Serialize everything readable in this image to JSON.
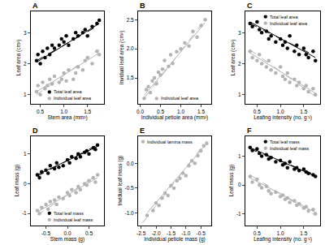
{
  "chart_data": [
    {
      "type": "scatter",
      "title": "A",
      "x_label": "Stem area (mm²)",
      "y_label": "Leaf area (cm²)",
      "xlim": [
        0.3,
        1.85
      ],
      "ylim": [
        0.7,
        3.7
      ],
      "xticks": [
        0.5,
        {
          "value": 1,
          "label": "1.0"
        },
        1.5
      ],
      "yticks": [
        1,
        2,
        3
      ],
      "grid": false,
      "legend": "bottom right",
      "series": [
        {
          "name": "Total leaf area",
          "color": "#000000",
          "marker": "circle",
          "x": [
            0.42,
            0.45,
            0.5,
            0.55,
            0.6,
            0.65,
            0.7,
            0.75,
            0.8,
            0.9,
            0.95,
            1.0,
            1.05,
            1.1,
            1.2,
            1.25,
            1.3,
            1.4,
            1.45,
            1.5,
            1.6,
            1.7,
            1.75
          ],
          "values": [
            2.1,
            2.3,
            2.0,
            2.4,
            2.2,
            2.5,
            2.3,
            2.6,
            2.5,
            2.6,
            2.8,
            2.7,
            2.9,
            2.6,
            2.8,
            3.0,
            2.9,
            3.0,
            3.1,
            2.9,
            3.2,
            3.3,
            3.4
          ]
        },
        {
          "name": "Individual leaf area",
          "color": "#b3b3b3",
          "marker": "circle",
          "x": [
            0.42,
            0.45,
            0.5,
            0.55,
            0.6,
            0.65,
            0.7,
            0.75,
            0.8,
            0.9,
            0.95,
            1.0,
            1.05,
            1.1,
            1.2,
            1.25,
            1.3,
            1.4,
            1.45,
            1.5,
            1.6,
            1.7,
            1.75
          ],
          "values": [
            1.1,
            1.3,
            1.0,
            1.4,
            1.2,
            1.3,
            1.5,
            1.35,
            1.6,
            1.4,
            1.5,
            1.7,
            1.45,
            1.8,
            1.5,
            1.7,
            1.9,
            1.8,
            2.1,
            2.2,
            2.0,
            2.4,
            2.3
          ]
        },
        {
          "type": "line",
          "color": "#000000",
          "line_style": "solid",
          "x": [
            0.42,
            1.75
          ],
          "values": [
            2.05,
            3.3
          ]
        },
        {
          "type": "line",
          "color": "#000000",
          "line_style": "dashed",
          "x": [
            0.42,
            1.75
          ],
          "values": [
            2.1,
            3.25
          ]
        },
        {
          "type": "line",
          "color": "#b3b3b3",
          "line_style": "solid",
          "x": [
            0.42,
            1.75
          ],
          "values": [
            1.1,
            2.35
          ]
        },
        {
          "type": "line",
          "color": "#b3b3b3",
          "line_style": "dashed",
          "x": [
            0.42,
            1.75
          ],
          "values": [
            1.0,
            2.45
          ]
        }
      ]
    },
    {
      "type": "scatter",
      "title": "B",
      "x_label": "Individual petiole area (mm²)",
      "y_label": "Invidual leaf area (cm²)",
      "xlim": [
        -0.05,
        1.75
      ],
      "ylim": [
        1.05,
        2.65
      ],
      "xticks": [
        {
          "value": 0,
          "label": "0.0"
        },
        0.5,
        {
          "value": 1,
          "label": "1.0"
        },
        1.5
      ],
      "yticks": [
        1.5,
        {
          "value": 2,
          "label": "2.0"
        },
        2.5
      ],
      "grid": false,
      "legend": "bottom right",
      "series": [
        {
          "name": "Individual leaf area",
          "color": "#b3b3b3",
          "marker": "circle",
          "x": [
            0.1,
            0.15,
            0.2,
            0.25,
            0.3,
            0.35,
            0.4,
            0.45,
            0.5,
            0.55,
            0.6,
            0.7,
            0.75,
            0.8,
            0.9,
            1.0,
            1.1,
            1.2,
            1.3,
            1.4,
            1.5,
            1.6
          ],
          "values": [
            1.15,
            1.3,
            1.35,
            1.25,
            1.45,
            1.5,
            1.4,
            1.6,
            1.55,
            1.65,
            1.8,
            1.7,
            1.9,
            1.75,
            1.95,
            2.0,
            2.1,
            2.05,
            2.3,
            2.2,
            2.4,
            2.5
          ]
        },
        {
          "type": "line",
          "color": "#b3b3b3",
          "line_style": "solid",
          "x": [
            0.1,
            1.6
          ],
          "values": [
            1.2,
            2.45
          ]
        },
        {
          "type": "line",
          "color": "#b3b3b3",
          "line_style": "dashed",
          "x": [
            0.1,
            1.6
          ],
          "values": [
            1.15,
            2.5
          ]
        }
      ]
    },
    {
      "type": "scatter",
      "title": "C",
      "x_label": "Leafing intensity (no. g⁻¹)",
      "y_label": "Leaf area (cm²)",
      "xlim": [
        0.25,
        1.85
      ],
      "ylim": [
        0.7,
        3.7
      ],
      "xticks": [
        0.5,
        {
          "value": 1,
          "label": "1.0"
        },
        1.5
      ],
      "yticks": [
        1,
        2,
        3
      ],
      "grid": false,
      "legend": "top right",
      "series": [
        {
          "name": "Total leaf area",
          "color": "#000000",
          "marker": "circle",
          "x": [
            0.35,
            0.4,
            0.5,
            0.55,
            0.6,
            0.7,
            0.75,
            0.8,
            0.9,
            1.0,
            1.05,
            1.1,
            1.15,
            1.2,
            1.3,
            1.35,
            1.4,
            1.5,
            1.55,
            1.6,
            1.7,
            1.75
          ],
          "values": [
            3.3,
            3.2,
            3.35,
            3.1,
            3.0,
            3.05,
            2.8,
            2.9,
            2.7,
            2.8,
            2.6,
            2.7,
            2.5,
            2.9,
            2.4,
            2.6,
            2.3,
            2.5,
            2.3,
            2.2,
            2.4,
            2.1
          ]
        },
        {
          "name": "Individual leaf area",
          "color": "#b3b3b3",
          "marker": "circle",
          "x": [
            0.35,
            0.4,
            0.5,
            0.55,
            0.6,
            0.7,
            0.75,
            0.8,
            0.9,
            1.0,
            1.05,
            1.1,
            1.15,
            1.2,
            1.3,
            1.35,
            1.4,
            1.5,
            1.55,
            1.6,
            1.7,
            1.75
          ],
          "values": [
            2.4,
            2.2,
            2.1,
            2.3,
            2.0,
            1.9,
            2.1,
            1.8,
            1.7,
            1.9,
            1.6,
            1.5,
            1.7,
            1.4,
            1.5,
            1.3,
            1.4,
            1.2,
            1.3,
            1.1,
            1.2,
            1.0
          ]
        },
        {
          "type": "line",
          "color": "#000000",
          "line_style": "solid",
          "x": [
            0.35,
            1.75
          ],
          "values": [
            3.35,
            2.2
          ]
        },
        {
          "type": "line",
          "color": "#000000",
          "line_style": "dashed",
          "x": [
            0.35,
            1.75
          ],
          "values": [
            3.3,
            2.25
          ]
        },
        {
          "type": "line",
          "color": "#b3b3b3",
          "line_style": "solid",
          "x": [
            0.35,
            1.75
          ],
          "values": [
            2.35,
            1.05
          ]
        },
        {
          "type": "line",
          "color": "#b3b3b3",
          "line_style": "dashed",
          "x": [
            0.35,
            1.75
          ],
          "values": [
            2.45,
            0.95
          ]
        }
      ]
    },
    {
      "type": "scatter",
      "title": "D",
      "x_label": "Stem mass (g)",
      "y_label": "Leaf mass (g)",
      "xlim": [
        -0.85,
        0.85
      ],
      "ylim": [
        -1.4,
        1.6
      ],
      "xticks": [
        -0.5,
        {
          "value": 0,
          "label": "0.0"
        },
        0.5
      ],
      "yticks": [
        -1,
        0,
        1
      ],
      "grid": false,
      "legend": "bottom right",
      "series": [
        {
          "name": "Total leaf mass",
          "color": "#000000",
          "marker": "circle",
          "x": [
            -0.7,
            -0.65,
            -0.6,
            -0.5,
            -0.45,
            -0.4,
            -0.3,
            -0.25,
            -0.2,
            -0.1,
            0.0,
            0.05,
            0.1,
            0.2,
            0.25,
            0.3,
            0.4,
            0.45,
            0.5,
            0.6,
            0.65,
            0.7
          ],
          "values": [
            0.3,
            0.2,
            0.4,
            0.45,
            0.35,
            0.6,
            0.5,
            0.7,
            0.55,
            0.6,
            0.8,
            0.7,
            0.9,
            0.85,
            1.0,
            0.9,
            1.05,
            1.1,
            1.0,
            1.2,
            1.15,
            1.3
          ]
        },
        {
          "name": "Individual leaf mass",
          "color": "#b3b3b3",
          "marker": "circle",
          "x": [
            -0.7,
            -0.65,
            -0.6,
            -0.5,
            -0.45,
            -0.4,
            -0.3,
            -0.25,
            -0.2,
            -0.1,
            0.0,
            0.05,
            0.1,
            0.2,
            0.25,
            0.3,
            0.4,
            0.45,
            0.5,
            0.6,
            0.65,
            0.7
          ],
          "values": [
            -0.9,
            -1.0,
            -0.8,
            -0.7,
            -0.85,
            -0.6,
            -0.55,
            -0.7,
            -0.45,
            -0.5,
            -0.3,
            -0.4,
            -0.2,
            -0.3,
            -0.1,
            -0.2,
            0.0,
            -0.05,
            0.1,
            0.2,
            0.05,
            0.3
          ]
        },
        {
          "type": "line",
          "color": "#000000",
          "line_style": "solid",
          "x": [
            -0.7,
            0.7
          ],
          "values": [
            0.3,
            1.25
          ]
        },
        {
          "type": "line",
          "color": "#000000",
          "line_style": "dashed",
          "x": [
            -0.7,
            0.7
          ],
          "values": [
            0.25,
            1.3
          ]
        },
        {
          "type": "line",
          "color": "#b3b3b3",
          "line_style": "solid",
          "x": [
            -0.7,
            0.7
          ],
          "values": [
            -0.95,
            0.2
          ]
        },
        {
          "type": "line",
          "color": "#b3b3b3",
          "line_style": "dashed",
          "x": [
            -0.7,
            0.7
          ],
          "values": [
            -1.05,
            0.3
          ]
        }
      ]
    },
    {
      "type": "scatter",
      "title": "E",
      "x_label": "Individual petiole mass (g)",
      "y_label": "Invidual leaf mass (g)",
      "xlim": [
        -2.6,
        -0.15
      ],
      "ylim": [
        -1.25,
        0.55
      ],
      "xticks": [
        -2.5,
        {
          "value": -2,
          "label": "-2.0"
        },
        -1.5,
        {
          "value": -1,
          "label": "-1.0"
        },
        -0.5
      ],
      "yticks": [
        {
          "value": -1,
          "label": "-1.0"
        },
        -0.5,
        {
          "value": 0,
          "label": "0.0"
        }
      ],
      "grid": false,
      "legend": "top left",
      "series": [
        {
          "name": "Individual lamina mass",
          "color": "#b3b3b3",
          "marker": "circle",
          "x": [
            -2.3,
            -2.1,
            -2.0,
            -1.9,
            -1.8,
            -1.7,
            -1.6,
            -1.5,
            -1.4,
            -1.3,
            -1.2,
            -1.1,
            -1.0,
            -0.9,
            -0.8,
            -0.7,
            -0.6,
            -0.5,
            -0.4,
            -0.3
          ],
          "values": [
            -1.05,
            -0.95,
            -0.8,
            -0.85,
            -0.7,
            -0.6,
            -0.65,
            -0.45,
            -0.5,
            -0.35,
            -0.3,
            -0.2,
            -0.25,
            -0.05,
            0.05,
            0.0,
            0.15,
            0.25,
            0.35,
            0.4
          ]
        },
        {
          "type": "line",
          "color": "#b3b3b3",
          "line_style": "solid",
          "x": [
            -2.3,
            -0.3
          ],
          "values": [
            -1.0,
            0.4
          ]
        },
        {
          "type": "line",
          "color": "#b3b3b3",
          "line_style": "dashed",
          "x": [
            -2.45,
            -0.3
          ],
          "values": [
            -1.2,
            0.45
          ]
        }
      ]
    },
    {
      "type": "scatter",
      "title": "F",
      "x_label": "Leafing intensity (no. g⁻¹)",
      "y_label": "Leaf mass (g)",
      "xlim": [
        0.25,
        1.85
      ],
      "ylim": [
        -1.4,
        1.7
      ],
      "xticks": [
        0.5,
        {
          "value": 1,
          "label": "1.0"
        },
        1.5
      ],
      "yticks": [
        -1,
        0,
        1
      ],
      "grid": false,
      "legend": "top right",
      "series": [
        {
          "name": "Total leaf mass",
          "color": "#000000",
          "marker": "circle",
          "x": [
            0.35,
            0.4,
            0.5,
            0.55,
            0.6,
            0.7,
            0.75,
            0.8,
            0.9,
            1.0,
            1.05,
            1.1,
            1.15,
            1.2,
            1.3,
            1.35,
            1.4,
            1.5,
            1.55,
            1.6,
            1.7,
            1.75
          ],
          "values": [
            1.3,
            1.2,
            1.25,
            1.1,
            1.0,
            1.05,
            0.9,
            0.95,
            0.8,
            0.85,
            0.7,
            0.75,
            0.6,
            0.8,
            0.55,
            0.6,
            0.5,
            0.55,
            0.45,
            0.4,
            0.35,
            0.3
          ]
        },
        {
          "name": "Individual leaf mass",
          "color": "#b3b3b3",
          "marker": "circle",
          "x": [
            0.35,
            0.4,
            0.5,
            0.55,
            0.6,
            0.7,
            0.75,
            0.8,
            0.9,
            1.0,
            1.05,
            1.1,
            1.15,
            1.2,
            1.3,
            1.35,
            1.4,
            1.5,
            1.55,
            1.6,
            1.7,
            1.75
          ],
          "values": [
            0.3,
            0.1,
            0.2,
            0.0,
            -0.1,
            -0.05,
            -0.2,
            -0.3,
            -0.25,
            -0.4,
            -0.35,
            -0.5,
            -0.45,
            -0.6,
            -0.55,
            -0.7,
            -0.65,
            -0.8,
            -0.75,
            -0.9,
            -0.85,
            -1.0
          ]
        },
        {
          "type": "line",
          "color": "#000000",
          "line_style": "solid",
          "x": [
            0.35,
            1.75
          ],
          "values": [
            1.3,
            0.3
          ]
        },
        {
          "type": "line",
          "color": "#000000",
          "line_style": "dashed",
          "x": [
            0.35,
            1.75
          ],
          "values": [
            1.25,
            0.35
          ]
        },
        {
          "type": "line",
          "color": "#b3b3b3",
          "line_style": "solid",
          "x": [
            0.35,
            1.75
          ],
          "values": [
            0.25,
            -0.95
          ]
        },
        {
          "type": "line",
          "color": "#b3b3b3",
          "line_style": "dashed",
          "x": [
            0.35,
            1.75
          ],
          "values": [
            0.35,
            -1.05
          ]
        }
      ]
    }
  ]
}
